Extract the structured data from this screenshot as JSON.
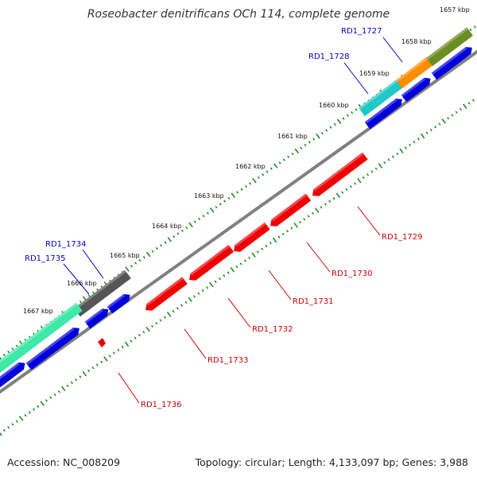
{
  "title": "Roseobacter denitrificans OCh 114, complete genome",
  "footer": {
    "accession": "Accession: NC_008209",
    "summary": "Topology: circular; Length: 4,133,097 bp; Genes: 3,988"
  },
  "scale_labels": [
    "1657 kbp",
    "1658 kbp",
    "1659 kbp",
    "1660 kbp",
    "1661 kbp",
    "1662 kbp",
    "1663 kbp",
    "1664 kbp",
    "1665 kbp",
    "1666 kbp",
    "1667 kbp"
  ],
  "gene_labels_forward": [
    "RD1_1727",
    "RD1_1728",
    "RD1_1734",
    "RD1_1735"
  ],
  "gene_labels_reverse": [
    "RD1_1729",
    "RD1_1730",
    "RD1_1731",
    "RD1_1732",
    "RD1_1733",
    "RD1_1736"
  ],
  "colors": {
    "forward_label": "#0000cc",
    "reverse_label": "#cc0000",
    "forward_gene": "#0000dd",
    "reverse_gene": "#ee0000",
    "backbone": "#808080",
    "tick": "#228b22",
    "teal": "#20c8c8",
    "orange": "#ff8c00",
    "olive": "#6b8e23",
    "dark_gray": "#555555",
    "aqua_green": "#3ee8a8"
  }
}
